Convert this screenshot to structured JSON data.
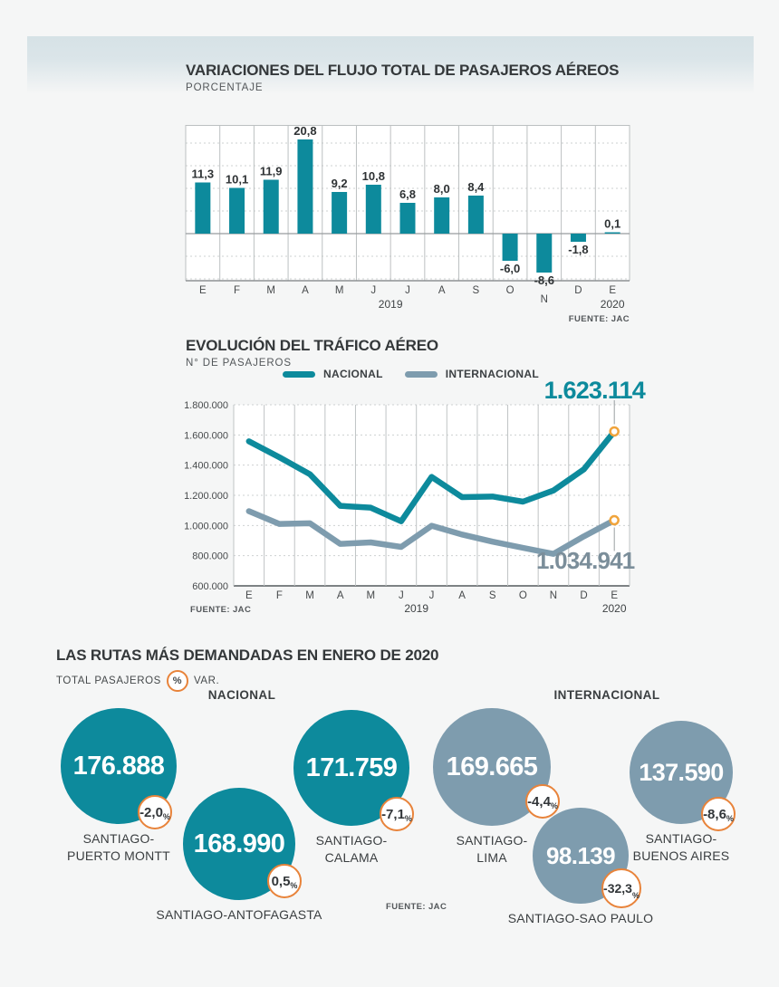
{
  "header": {
    "bars": {
      "title": "VARIACIONES DEL FLUJO TOTAL DE PASAJEROS AÉREOS",
      "subtitle": "PORCENTAJE",
      "source": "FUENTE: JAC"
    },
    "lines": {
      "title": "EVOLUCIÓN DEL TRÁFICO AÉREO",
      "subtitle": "N° DE PASAJEROS",
      "source": "FUENTE: JAC"
    },
    "routes": {
      "title": "LAS RUTAS MÁS DEMANDADAS EN ENERO DE 2020",
      "legend_total": "TOTAL PASAJEROS",
      "legend_pct_symbol": "%",
      "legend_var": "VAR.",
      "source": "FUENTE: JAC"
    }
  },
  "chart_data": [
    {
      "type": "bar",
      "title": "VARIACIONES DEL FLUJO TOTAL DE PASAJEROS AÉREOS",
      "ylabel": "PORCENTAJE",
      "categories": [
        "E",
        "F",
        "M",
        "A",
        "M",
        "J",
        "J",
        "A",
        "S",
        "O",
        "N",
        "D",
        "E"
      ],
      "values": [
        11.3,
        10.1,
        11.9,
        20.8,
        9.2,
        10.8,
        6.8,
        8.0,
        8.4,
        -6.0,
        -8.6,
        -1.8,
        0.1
      ],
      "value_labels": [
        "11,3",
        "10,1",
        "11,9",
        "20,8",
        "9,2",
        "10,8",
        "6,8",
        "8,0",
        "8,4",
        "-6,0",
        "-8,6",
        "-1,8",
        "0,1"
      ],
      "year_labels": [
        "2019",
        "2020"
      ],
      "ylim": [
        -10.4,
        24
      ],
      "grid_step": 5,
      "bar_color": "#0d8a9c",
      "source": "FUENTE: JAC"
    },
    {
      "type": "line",
      "title": "EVOLUCIÓN DEL TRÁFICO AÉREO",
      "ylabel": "N° DE PASAJEROS",
      "categories": [
        "E",
        "F",
        "M",
        "A",
        "M",
        "J",
        "J",
        "A",
        "S",
        "O",
        "N",
        "D",
        "E"
      ],
      "series": [
        {
          "name": "NACIONAL",
          "color": "#0d8a9c",
          "end_label": "1.623.114",
          "values": [
            1558000,
            1452000,
            1340000,
            1130000,
            1118000,
            1028000,
            1322000,
            1188000,
            1192000,
            1158000,
            1232000,
            1372000,
            1623114
          ]
        },
        {
          "name": "INTERNACIONAL",
          "color": "#7e9cae",
          "end_label": "1.034.941",
          "values": [
            1095000,
            1010000,
            1015000,
            878000,
            888000,
            858000,
            998000,
            940000,
            893000,
            852000,
            812000,
            928000,
            1034941
          ]
        }
      ],
      "ylim": [
        600000,
        1800000
      ],
      "ytick_labels": [
        "1.800.000",
        "1.600.000",
        "1.400.000",
        "1.200.000",
        "1.000.000",
        "800.000",
        "600.000"
      ],
      "year_labels": [
        "2019",
        "2020"
      ],
      "source": "FUENTE: JAC"
    },
    {
      "type": "bubble",
      "title": "LAS RUTAS MÁS DEMANDADAS EN ENERO DE 2020",
      "groups": [
        {
          "name": "NACIONAL",
          "color": "#0d8a9c",
          "routes": [
            {
              "route": "SANTIAGO-PUERTO MONTT",
              "label_lines": [
                "SANTIAGO-",
                "PUERTO MONTT"
              ],
              "passengers": "176.888",
              "variation": "-2,0"
            },
            {
              "route": "SANTIAGO-ANTOFAGASTA",
              "label_lines": [
                "SANTIAGO-ANTOFAGASTA"
              ],
              "passengers": "168.990",
              "variation": "0,5"
            },
            {
              "route": "SANTIAGO-CALAMA",
              "label_lines": [
                "SANTIAGO-",
                "CALAMA"
              ],
              "passengers": "171.759",
              "variation": "-7,1"
            }
          ]
        },
        {
          "name": "INTERNACIONAL",
          "color": "#7e9cae",
          "routes": [
            {
              "route": "SANTIAGO-LIMA",
              "label_lines": [
                "SANTIAGO-",
                "LIMA"
              ],
              "passengers": "169.665",
              "variation": "-4,4"
            },
            {
              "route": "SANTIAGO-SAO PAULO",
              "label_lines": [
                "SANTIAGO-SAO PAULO"
              ],
              "passengers": "98.139",
              "variation": "-32,3"
            },
            {
              "route": "SANTIAGO-BUENOS AIRES",
              "label_lines": [
                "SANTIAGO-",
                "BUENOS AIRES"
              ],
              "passengers": "137.590",
              "variation": "-8,6"
            }
          ]
        }
      ]
    }
  ],
  "colors": {
    "teal": "#0d8a9c",
    "slate": "#7e9cae",
    "orange": "#e8833a",
    "page_bg": "#f5f6f6"
  }
}
